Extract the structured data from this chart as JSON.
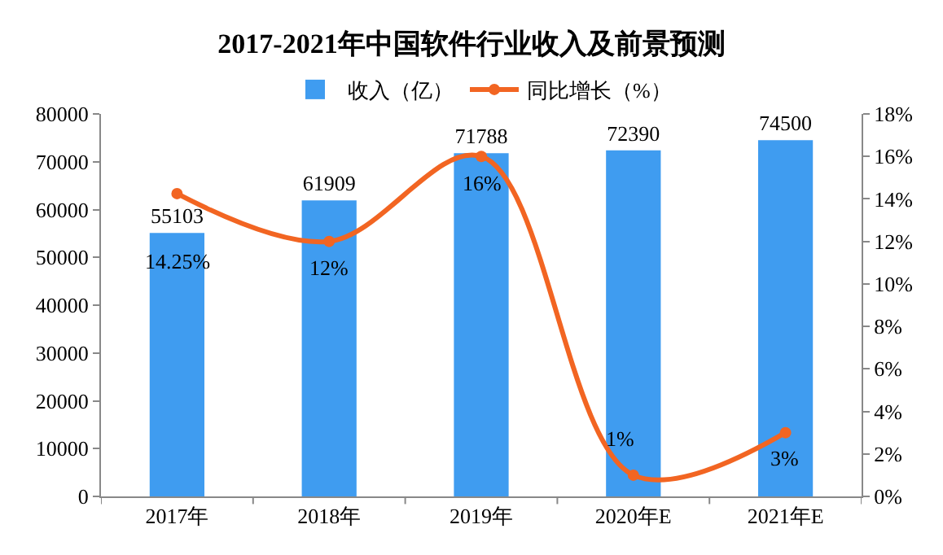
{
  "chart_data": {
    "type": "bar",
    "title": "2017-2021年中国软件行业收入及前景预测",
    "categories": [
      "2017年",
      "2018年",
      "2019年",
      "2020年E",
      "2021年E"
    ],
    "series": [
      {
        "name": "收入（亿）",
        "color": "#3f9cf0",
        "values": [
          55103,
          61909,
          71788,
          72390,
          74500
        ],
        "data_labels": true
      },
      {
        "name": "同比增长（%）",
        "type": "line",
        "axis": "y2",
        "color": "#f26522",
        "values": [
          14.25,
          12,
          16,
          1,
          3
        ],
        "value_labels": [
          "14.25%",
          "12%",
          "16%",
          "1%",
          "3%"
        ],
        "marker": "circle",
        "line_style": "solid"
      }
    ],
    "ylim": [
      0,
      80000
    ],
    "yticks": [
      0,
      10000,
      20000,
      30000,
      40000,
      50000,
      60000,
      70000,
      80000
    ],
    "y2lim": [
      0,
      18
    ],
    "y2ticks": [
      {
        "value": 0,
        "label": "0%"
      },
      {
        "value": 2,
        "label": "2%"
      },
      {
        "value": 4,
        "label": "4%"
      },
      {
        "value": 6,
        "label": "6%"
      },
      {
        "value": 8,
        "label": "8%"
      },
      {
        "value": 10,
        "label": "10%"
      },
      {
        "value": 12,
        "label": "12%"
      },
      {
        "value": 14,
        "label": "14%"
      },
      {
        "value": 16,
        "label": "16%"
      },
      {
        "value": 18,
        "label": "18%"
      }
    ],
    "grid": false,
    "legend": "top"
  }
}
